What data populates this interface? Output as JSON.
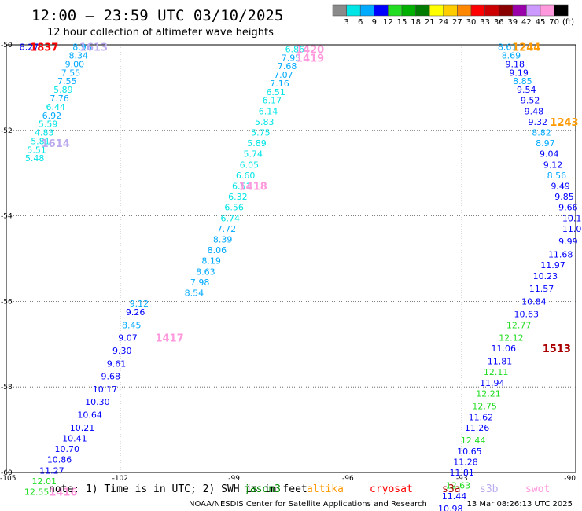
{
  "header": {
    "title": "12:00 — 23:59 UTC 03/10/2025",
    "subtitle": "12 hour collection of altimeter wave heights"
  },
  "legend": {
    "bins": [
      {
        "label": "3",
        "color": "#8a8a8a"
      },
      {
        "label": "6",
        "color": "#00e5e5"
      },
      {
        "label": "9",
        "color": "#00aaff"
      },
      {
        "label": "12",
        "color": "#0000ff"
      },
      {
        "label": "15",
        "color": "#22dd22"
      },
      {
        "label": "18",
        "color": "#00b000"
      },
      {
        "label": "21",
        "color": "#007a00"
      },
      {
        "label": "24",
        "color": "#ffff00"
      },
      {
        "label": "27",
        "color": "#ffcc00"
      },
      {
        "label": "30",
        "color": "#ff8800"
      },
      {
        "label": "33",
        "color": "#ff0000"
      },
      {
        "label": "36",
        "color": "#cc0000"
      },
      {
        "label": "39",
        "color": "#880000"
      },
      {
        "label": "42",
        "color": "#9900aa"
      },
      {
        "label": "45",
        "color": "#cc99ff"
      },
      {
        "label": "70",
        "color": "#ff99dd"
      }
    ],
    "extra_swatch_color": "#000000",
    "unit": "(ft)"
  },
  "footer": {
    "note_prefix": "note:  1) Time is in UTC;  2) SWH is in feet",
    "satellites": [
      {
        "name": "jason3",
        "color": "#008800"
      },
      {
        "name": "altika",
        "color": "#ff9900"
      },
      {
        "name": "cryosat",
        "color": "#ff0000"
      },
      {
        "name": "s3a",
        "color": "#aa0000"
      },
      {
        "name": "s3b",
        "color": "#bbaaee"
      },
      {
        "name": "swot",
        "color": "#ff99dd"
      }
    ],
    "credit": "NOAA/NESDIS Center for Satellite Applications and Research",
    "timestamp": "13 Mar 08:26:13 UTC 2025"
  },
  "chart_data": {
    "type": "scatter",
    "xlim": [
      -105,
      -90
    ],
    "ylim": [
      -60,
      -50
    ],
    "x_ticks": [
      {
        "value": -105,
        "label": "-105"
      },
      {
        "value": -102,
        "label": "-102"
      },
      {
        "value": -99,
        "label": "-99"
      },
      {
        "value": -96,
        "label": "-96"
      },
      {
        "value": -93,
        "label": "-93"
      },
      {
        "value": -90,
        "label": "-90"
      }
    ],
    "y_ticks": [
      {
        "value": -50,
        "label": "-50"
      },
      {
        "value": -52,
        "label": "-52"
      },
      {
        "value": -54,
        "label": "-54"
      },
      {
        "value": -56,
        "label": "-56"
      },
      {
        "value": -58,
        "label": "-58"
      },
      {
        "value": -60,
        "label": "-60"
      }
    ],
    "grid": "dotted",
    "tracks": [
      {
        "satellite": "jason3",
        "points": [
          {
            "lon": -104.4,
            "lat": -50.05,
            "v": "8.27",
            "c": "#0000ff"
          }
        ]
      },
      {
        "satellite": "track-west-top",
        "points": [
          {
            "lon": -103.0,
            "lat": -50.05,
            "v": "8.96",
            "c": "#00aaff"
          },
          {
            "lon": -103.1,
            "lat": -50.25,
            "v": "8.34",
            "c": "#00aaff"
          },
          {
            "lon": -103.2,
            "lat": -50.45,
            "v": "9.00",
            "c": "#00aaff"
          },
          {
            "lon": -103.3,
            "lat": -50.65,
            "v": "7.55",
            "c": "#00aaff"
          },
          {
            "lon": -103.4,
            "lat": -50.85,
            "v": "7.55",
            "c": "#00aaff"
          },
          {
            "lon": -103.5,
            "lat": -51.05,
            "v": "5.89",
            "c": "#00e5e5"
          },
          {
            "lon": -103.6,
            "lat": -51.25,
            "v": "7.76",
            "c": "#00aaff"
          },
          {
            "lon": -103.7,
            "lat": -51.45,
            "v": "6.44",
            "c": "#00e5e5"
          },
          {
            "lon": -103.8,
            "lat": -51.65,
            "v": "6.92",
            "c": "#00aaff"
          },
          {
            "lon": -103.9,
            "lat": -51.85,
            "v": "5.59",
            "c": "#00e5e5"
          },
          {
            "lon": -104.0,
            "lat": -52.05,
            "v": "4.83",
            "c": "#00e5e5"
          },
          {
            "lon": -104.1,
            "lat": -52.25,
            "v": "5.81",
            "c": "#00e5e5"
          },
          {
            "lon": -104.2,
            "lat": -52.45,
            "v": "5.51",
            "c": "#00e5e5"
          },
          {
            "lon": -104.25,
            "lat": -52.65,
            "v": "5.48",
            "c": "#00e5e5"
          }
        ]
      },
      {
        "satellite": "track-west-bottom",
        "points": [
          {
            "lon": -101.5,
            "lat": -56.05,
            "v": "9.12",
            "c": "#00aaff"
          },
          {
            "lon": -101.6,
            "lat": -56.25,
            "v": "9.26",
            "c": "#0000ff"
          },
          {
            "lon": -101.7,
            "lat": -56.55,
            "v": "8.45",
            "c": "#00aaff"
          },
          {
            "lon": -101.8,
            "lat": -56.85,
            "v": "9.07",
            "c": "#0000ff"
          },
          {
            "lon": -101.95,
            "lat": -57.15,
            "v": "9.30",
            "c": "#0000ff"
          },
          {
            "lon": -102.1,
            "lat": -57.45,
            "v": "9.61",
            "c": "#0000ff"
          },
          {
            "lon": -102.25,
            "lat": -57.75,
            "v": "9.68",
            "c": "#0000ff"
          },
          {
            "lon": -102.4,
            "lat": -58.05,
            "v": "10.17",
            "c": "#0000ff"
          },
          {
            "lon": -102.6,
            "lat": -58.35,
            "v": "10.30",
            "c": "#0000ff"
          },
          {
            "lon": -102.8,
            "lat": -58.65,
            "v": "10.64",
            "c": "#0000ff"
          },
          {
            "lon": -103.0,
            "lat": -58.95,
            "v": "10.21",
            "c": "#0000ff"
          },
          {
            "lon": -103.2,
            "lat": -59.2,
            "v": "10.41",
            "c": "#0000ff"
          },
          {
            "lon": -103.4,
            "lat": -59.45,
            "v": "10.70",
            "c": "#0000ff"
          },
          {
            "lon": -103.6,
            "lat": -59.7,
            "v": "10.86",
            "c": "#0000ff"
          },
          {
            "lon": -103.8,
            "lat": -59.95,
            "v": "11.27",
            "c": "#0000ff"
          },
          {
            "lon": -104.0,
            "lat": -60.2,
            "v": "12.01",
            "c": "#22dd22"
          },
          {
            "lon": -104.2,
            "lat": -60.45,
            "v": "12.55",
            "c": "#22dd22"
          }
        ]
      },
      {
        "satellite": "track-middle",
        "points": [
          {
            "lon": -97.4,
            "lat": -50.1,
            "v": "6.86",
            "c": "#00e5e5"
          },
          {
            "lon": -97.5,
            "lat": -50.3,
            "v": "7.95",
            "c": "#00aaff"
          },
          {
            "lon": -97.6,
            "lat": -50.5,
            "v": "7.68",
            "c": "#00aaff"
          },
          {
            "lon": -97.7,
            "lat": -50.7,
            "v": "7.07",
            "c": "#00aaff"
          },
          {
            "lon": -97.8,
            "lat": -50.9,
            "v": "7.16",
            "c": "#00aaff"
          },
          {
            "lon": -97.9,
            "lat": -51.1,
            "v": "6.51",
            "c": "#00e5e5"
          },
          {
            "lon": -98.0,
            "lat": -51.3,
            "v": "6.17",
            "c": "#00e5e5"
          },
          {
            "lon": -98.1,
            "lat": -51.55,
            "v": "6.14",
            "c": "#00e5e5"
          },
          {
            "lon": -98.2,
            "lat": -51.8,
            "v": "5.83",
            "c": "#00e5e5"
          },
          {
            "lon": -98.3,
            "lat": -52.05,
            "v": "5.75",
            "c": "#00e5e5"
          },
          {
            "lon": -98.4,
            "lat": -52.3,
            "v": "5.89",
            "c": "#00e5e5"
          },
          {
            "lon": -98.5,
            "lat": -52.55,
            "v": "5.74",
            "c": "#00e5e5"
          },
          {
            "lon": -98.6,
            "lat": -52.8,
            "v": "6.05",
            "c": "#00e5e5"
          },
          {
            "lon": -98.7,
            "lat": -53.05,
            "v": "6.60",
            "c": "#00e5e5"
          },
          {
            "lon": -98.8,
            "lat": -53.3,
            "v": "6.51",
            "c": "#00e5e5"
          },
          {
            "lon": -98.9,
            "lat": -53.55,
            "v": "6.32",
            "c": "#00e5e5"
          },
          {
            "lon": -99.0,
            "lat": -53.8,
            "v": "6.56",
            "c": "#00e5e5"
          },
          {
            "lon": -99.1,
            "lat": -54.05,
            "v": "6.74",
            "c": "#00e5e5"
          },
          {
            "lon": -99.2,
            "lat": -54.3,
            "v": "7.72",
            "c": "#00aaff"
          },
          {
            "lon": -99.3,
            "lat": -54.55,
            "v": "8.39",
            "c": "#00aaff"
          },
          {
            "lon": -99.45,
            "lat": -54.8,
            "v": "8.06",
            "c": "#00aaff"
          },
          {
            "lon": -99.6,
            "lat": -55.05,
            "v": "8.19",
            "c": "#00aaff"
          },
          {
            "lon": -99.75,
            "lat": -55.3,
            "v": "8.63",
            "c": "#00aaff"
          },
          {
            "lon": -99.9,
            "lat": -55.55,
            "v": "7.98",
            "c": "#00aaff"
          },
          {
            "lon": -100.05,
            "lat": -55.8,
            "v": "8.54",
            "c": "#00aaff"
          }
        ]
      },
      {
        "satellite": "track-east",
        "points": [
          {
            "lon": -91.8,
            "lat": -50.05,
            "v": "8.61",
            "c": "#00aaff"
          },
          {
            "lon": -91.7,
            "lat": -50.25,
            "v": "8.69",
            "c": "#00aaff"
          },
          {
            "lon": -91.6,
            "lat": -50.45,
            "v": "9.18",
            "c": "#0000ff"
          },
          {
            "lon": -91.5,
            "lat": -50.65,
            "v": "9.19",
            "c": "#0000ff"
          },
          {
            "lon": -91.4,
            "lat": -50.85,
            "v": "8.85",
            "c": "#00aaff"
          },
          {
            "lon": -91.3,
            "lat": -51.05,
            "v": "9.54",
            "c": "#0000ff"
          },
          {
            "lon": -91.2,
            "lat": -51.3,
            "v": "9.52",
            "c": "#0000ff"
          },
          {
            "lon": -91.1,
            "lat": -51.55,
            "v": "9.48",
            "c": "#0000ff"
          },
          {
            "lon": -91.0,
            "lat": -51.8,
            "v": "9.32",
            "c": "#0000ff"
          },
          {
            "lon": -90.9,
            "lat": -52.05,
            "v": "8.82",
            "c": "#00aaff"
          },
          {
            "lon": -90.8,
            "lat": -52.3,
            "v": "8.97",
            "c": "#00aaff"
          },
          {
            "lon": -90.7,
            "lat": -52.55,
            "v": "9.04",
            "c": "#0000ff"
          },
          {
            "lon": -90.6,
            "lat": -52.8,
            "v": "9.12",
            "c": "#0000ff"
          },
          {
            "lon": -90.5,
            "lat": -53.05,
            "v": "8.56",
            "c": "#00aaff"
          },
          {
            "lon": -90.4,
            "lat": -53.3,
            "v": "9.49",
            "c": "#0000ff"
          },
          {
            "lon": -90.3,
            "lat": -53.55,
            "v": "9.85",
            "c": "#0000ff"
          },
          {
            "lon": -90.2,
            "lat": -53.8,
            "v": "9.66",
            "c": "#0000ff"
          },
          {
            "lon": -90.1,
            "lat": -54.05,
            "v": "10.1",
            "c": "#0000ff"
          },
          {
            "lon": -90.1,
            "lat": -54.3,
            "v": "11.0",
            "c": "#0000ff"
          },
          {
            "lon": -90.2,
            "lat": -54.6,
            "v": "9.99",
            "c": "#0000ff"
          },
          {
            "lon": -90.4,
            "lat": -54.9,
            "v": "11.68",
            "c": "#0000ff"
          },
          {
            "lon": -90.6,
            "lat": -55.15,
            "v": "11.97",
            "c": "#0000ff"
          },
          {
            "lon": -90.8,
            "lat": -55.4,
            "v": "10.23",
            "c": "#0000ff"
          },
          {
            "lon": -90.9,
            "lat": -55.7,
            "v": "11.57",
            "c": "#0000ff"
          },
          {
            "lon": -91.1,
            "lat": -56.0,
            "v": "10.84",
            "c": "#0000ff"
          },
          {
            "lon": -91.3,
            "lat": -56.3,
            "v": "10.63",
            "c": "#0000ff"
          },
          {
            "lon": -91.5,
            "lat": -56.55,
            "v": "12.77",
            "c": "#22dd22"
          },
          {
            "lon": -91.7,
            "lat": -56.85,
            "v": "12.12",
            "c": "#22dd22"
          },
          {
            "lon": -91.9,
            "lat": -57.1,
            "v": "11.06",
            "c": "#0000ff"
          },
          {
            "lon": -92.0,
            "lat": -57.4,
            "v": "11.81",
            "c": "#0000ff"
          },
          {
            "lon": -92.1,
            "lat": -57.65,
            "v": "12.11",
            "c": "#22dd22"
          },
          {
            "lon": -92.2,
            "lat": -57.9,
            "v": "11.94",
            "c": "#0000ff"
          },
          {
            "lon": -92.3,
            "lat": -58.15,
            "v": "12.21",
            "c": "#22dd22"
          },
          {
            "lon": -92.4,
            "lat": -58.45,
            "v": "12.75",
            "c": "#22dd22"
          },
          {
            "lon": -92.5,
            "lat": -58.7,
            "v": "11.62",
            "c": "#0000ff"
          },
          {
            "lon": -92.6,
            "lat": -58.95,
            "v": "11.26",
            "c": "#0000ff"
          },
          {
            "lon": -92.7,
            "lat": -59.25,
            "v": "12.44",
            "c": "#22dd22"
          },
          {
            "lon": -92.8,
            "lat": -59.5,
            "v": "10.65",
            "c": "#0000ff"
          },
          {
            "lon": -92.9,
            "lat": -59.75,
            "v": "11.28",
            "c": "#0000ff"
          },
          {
            "lon": -93.0,
            "lat": -60.0,
            "v": "11.81",
            "c": "#0000ff"
          },
          {
            "lon": -93.1,
            "lat": -60.3,
            "v": "12.63",
            "c": "#22dd22"
          },
          {
            "lon": -93.2,
            "lat": -60.55,
            "v": "11.44",
            "c": "#0000ff"
          },
          {
            "lon": -93.3,
            "lat": -60.85,
            "v": "10.98",
            "c": "#0000ff"
          }
        ]
      }
    ],
    "time_labels": [
      {
        "lon": -104.0,
        "lat": -50.05,
        "text": "1837",
        "color": "#ff0000"
      },
      {
        "lon": -102.7,
        "lat": -50.05,
        "text": "1613",
        "color": "#bbaaee"
      },
      {
        "lon": -103.7,
        "lat": -52.3,
        "text": "1614",
        "color": "#bbaaee"
      },
      {
        "lon": -100.7,
        "lat": -56.85,
        "text": "1417",
        "color": "#ff99dd"
      },
      {
        "lon": -103.5,
        "lat": -60.45,
        "text": "1416",
        "color": "#ff99dd"
      },
      {
        "lon": -97.0,
        "lat": -50.1,
        "text": "1420",
        "color": "#ff99dd"
      },
      {
        "lon": -97.0,
        "lat": -50.3,
        "text": "1419",
        "color": "#ff99dd"
      },
      {
        "lon": -98.5,
        "lat": -53.3,
        "text": "1418",
        "color": "#ff99dd"
      },
      {
        "lon": -91.3,
        "lat": -50.05,
        "text": "1244",
        "color": "#ff9900"
      },
      {
        "lon": -90.3,
        "lat": -51.8,
        "text": "1243",
        "color": "#ff9900"
      },
      {
        "lon": -90.5,
        "lat": -57.1,
        "text": "1513",
        "color": "#aa0000"
      }
    ]
  }
}
